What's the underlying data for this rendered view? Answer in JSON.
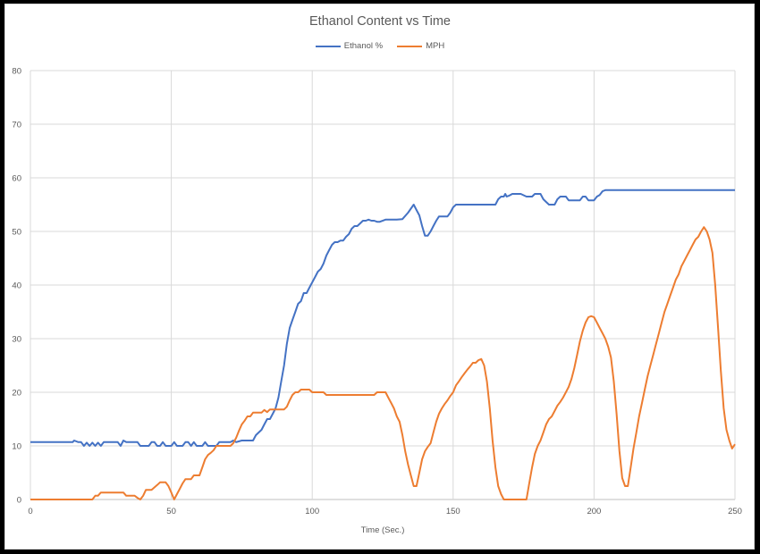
{
  "chart_data": {
    "type": "line",
    "title": "Ethanol Content vs Time",
    "xlabel": "Time (Sec.)",
    "ylabel": "",
    "xlim": [
      0,
      250
    ],
    "ylim": [
      0,
      80
    ],
    "xticks": [
      0,
      50,
      100,
      150,
      200,
      250
    ],
    "yticks": [
      0,
      10,
      20,
      30,
      40,
      50,
      60,
      70,
      80
    ],
    "grid": true,
    "legend_position": "top",
    "series": [
      {
        "name": "Ethanol %",
        "color": "#4472C4",
        "points": [
          [
            0,
            10.7
          ],
          [
            15,
            10.7
          ],
          [
            15.5,
            11
          ],
          [
            17,
            10.7
          ],
          [
            18,
            10.7
          ],
          [
            19,
            10
          ],
          [
            20,
            10.6
          ],
          [
            21,
            10
          ],
          [
            22,
            10.6
          ],
          [
            23,
            10
          ],
          [
            24,
            10.6
          ],
          [
            25,
            10
          ],
          [
            26,
            10.7
          ],
          [
            31,
            10.7
          ],
          [
            32,
            10
          ],
          [
            33,
            11
          ],
          [
            34,
            10.7
          ],
          [
            38,
            10.7
          ],
          [
            39,
            10
          ],
          [
            42,
            10
          ],
          [
            43,
            10.7
          ],
          [
            44,
            10.7
          ],
          [
            45,
            10
          ],
          [
            46,
            10
          ],
          [
            47,
            10.7
          ],
          [
            48,
            10
          ],
          [
            50,
            10
          ],
          [
            51,
            10.7
          ],
          [
            52,
            10
          ],
          [
            54,
            10
          ],
          [
            55,
            10.7
          ],
          [
            56,
            10.7
          ],
          [
            57,
            10
          ],
          [
            58,
            10.7
          ],
          [
            59,
            10
          ],
          [
            61,
            10
          ],
          [
            62,
            10.7
          ],
          [
            63,
            10
          ],
          [
            66,
            10
          ],
          [
            67,
            10.7
          ],
          [
            71,
            10.7
          ],
          [
            72,
            11
          ],
          [
            73,
            10.7
          ],
          [
            75,
            11
          ],
          [
            79,
            11
          ],
          [
            80,
            12
          ],
          [
            82,
            13
          ],
          [
            83,
            14
          ],
          [
            84,
            15
          ],
          [
            85,
            15
          ],
          [
            86,
            16
          ],
          [
            87,
            17
          ],
          [
            88,
            19
          ],
          [
            89,
            22
          ],
          [
            90,
            25
          ],
          [
            91,
            29
          ],
          [
            92,
            32
          ],
          [
            93,
            33.5
          ],
          [
            94,
            35
          ],
          [
            95,
            36.5
          ],
          [
            96,
            37
          ],
          [
            97,
            38.5
          ],
          [
            98,
            38.5
          ],
          [
            99,
            39.5
          ],
          [
            100,
            40.5
          ],
          [
            101,
            41.5
          ],
          [
            102,
            42.5
          ],
          [
            103,
            43
          ],
          [
            104,
            44
          ],
          [
            105,
            45.5
          ],
          [
            106,
            46.5
          ],
          [
            107,
            47.5
          ],
          [
            108,
            48
          ],
          [
            109,
            48
          ],
          [
            110,
            48.3
          ],
          [
            111,
            48.3
          ],
          [
            112,
            49
          ],
          [
            113,
            49.5
          ],
          [
            114,
            50.5
          ],
          [
            115,
            51
          ],
          [
            116,
            51
          ],
          [
            117,
            51.5
          ],
          [
            118,
            52
          ],
          [
            119,
            52
          ],
          [
            120,
            52.2
          ],
          [
            121,
            52
          ],
          [
            122,
            52
          ],
          [
            123,
            51.8
          ],
          [
            124,
            51.8
          ],
          [
            126,
            52.2
          ],
          [
            130,
            52.2
          ],
          [
            132,
            52.3
          ],
          [
            134,
            53.5
          ],
          [
            136,
            55
          ],
          [
            137,
            54
          ],
          [
            138,
            53
          ],
          [
            139,
            51
          ],
          [
            140,
            49.2
          ],
          [
            141,
            49.2
          ],
          [
            142,
            50
          ],
          [
            143,
            51
          ],
          [
            144,
            52
          ],
          [
            145,
            52.8
          ],
          [
            147,
            52.8
          ],
          [
            148,
            52.8
          ],
          [
            149,
            53.5
          ],
          [
            150,
            54.5
          ],
          [
            151,
            55
          ],
          [
            161,
            55
          ],
          [
            164,
            55
          ],
          [
            165,
            55
          ],
          [
            166,
            56
          ],
          [
            167,
            56.5
          ],
          [
            168,
            56.5
          ],
          [
            168.5,
            57
          ],
          [
            169,
            56.5
          ],
          [
            170,
            56.7
          ],
          [
            171,
            57
          ],
          [
            174,
            57
          ],
          [
            176,
            56.5
          ],
          [
            178,
            56.5
          ],
          [
            179,
            57
          ],
          [
            181,
            57
          ],
          [
            182,
            56
          ],
          [
            183,
            55.5
          ],
          [
            184,
            55
          ],
          [
            186,
            55
          ],
          [
            187,
            56
          ],
          [
            188,
            56.5
          ],
          [
            190,
            56.5
          ],
          [
            191,
            55.8
          ],
          [
            195,
            55.8
          ],
          [
            196,
            56.5
          ],
          [
            197,
            56.5
          ],
          [
            198,
            55.8
          ],
          [
            200,
            55.8
          ],
          [
            201,
            56.5
          ],
          [
            202,
            56.8
          ],
          [
            203,
            57.5
          ],
          [
            204,
            57.7
          ],
          [
            250,
            57.7
          ]
        ]
      },
      {
        "name": "MPH",
        "color": "#ED7D31",
        "points": [
          [
            0,
            0
          ],
          [
            22,
            0
          ],
          [
            23,
            0.7
          ],
          [
            24,
            0.7
          ],
          [
            25,
            1.3
          ],
          [
            33,
            1.3
          ],
          [
            34,
            0.7
          ],
          [
            37,
            0.7
          ],
          [
            38,
            0.3
          ],
          [
            39,
            0
          ],
          [
            40,
            0.7
          ],
          [
            41,
            1.8
          ],
          [
            43,
            1.8
          ],
          [
            45,
            2.7
          ],
          [
            46,
            3.2
          ],
          [
            48,
            3.2
          ],
          [
            49,
            2.5
          ],
          [
            50,
            1.3
          ],
          [
            51,
            0
          ],
          [
            52,
            1
          ],
          [
            53,
            2
          ],
          [
            54,
            3
          ],
          [
            55,
            3.8
          ],
          [
            57,
            3.8
          ],
          [
            58,
            4.5
          ],
          [
            60,
            4.5
          ],
          [
            61,
            6
          ],
          [
            62,
            7.5
          ],
          [
            63,
            8.3
          ],
          [
            64,
            8.7
          ],
          [
            65,
            9.2
          ],
          [
            66,
            10
          ],
          [
            71,
            10
          ],
          [
            72,
            10.5
          ],
          [
            73,
            11.5
          ],
          [
            74,
            12.8
          ],
          [
            75,
            14
          ],
          [
            76,
            14.7
          ],
          [
            77,
            15.5
          ],
          [
            78,
            15.5
          ],
          [
            79,
            16.2
          ],
          [
            82,
            16.2
          ],
          [
            83,
            16.7
          ],
          [
            84,
            16.3
          ],
          [
            85,
            16.8
          ],
          [
            90,
            16.8
          ],
          [
            91,
            17.3
          ],
          [
            92,
            18.5
          ],
          [
            93,
            19.5
          ],
          [
            94,
            20
          ],
          [
            95,
            20
          ],
          [
            96,
            20.5
          ],
          [
            99,
            20.5
          ],
          [
            100,
            20
          ],
          [
            104,
            20
          ],
          [
            105,
            19.5
          ],
          [
            122,
            19.5
          ],
          [
            123,
            20
          ],
          [
            126,
            20
          ],
          [
            127,
            19
          ],
          [
            128,
            18
          ],
          [
            129,
            17
          ],
          [
            130,
            15.5
          ],
          [
            131,
            14.5
          ],
          [
            132,
            12
          ],
          [
            133,
            9
          ],
          [
            134,
            6.5
          ],
          [
            135,
            4.5
          ],
          [
            136,
            2.5
          ],
          [
            137,
            2.5
          ],
          [
            138,
            5
          ],
          [
            139,
            7.5
          ],
          [
            140,
            9
          ],
          [
            141,
            9.8
          ],
          [
            142,
            10.5
          ],
          [
            143,
            12.5
          ],
          [
            144,
            14.5
          ],
          [
            145,
            16
          ],
          [
            146,
            17
          ],
          [
            147,
            17.8
          ],
          [
            148,
            18.5
          ],
          [
            149,
            19.3
          ],
          [
            150,
            20
          ],
          [
            151,
            21.3
          ],
          [
            152,
            22
          ],
          [
            153,
            22.8
          ],
          [
            154,
            23.5
          ],
          [
            155,
            24.2
          ],
          [
            156,
            24.8
          ],
          [
            157,
            25.5
          ],
          [
            158,
            25.5
          ],
          [
            159,
            26
          ],
          [
            160,
            26.2
          ],
          [
            161,
            25
          ],
          [
            162,
            22
          ],
          [
            163,
            17
          ],
          [
            164,
            11
          ],
          [
            165,
            6
          ],
          [
            166,
            2.5
          ],
          [
            167,
            1
          ],
          [
            168,
            0
          ],
          [
            176,
            0
          ],
          [
            177,
            3
          ],
          [
            178,
            6
          ],
          [
            179,
            8.5
          ],
          [
            180,
            10
          ],
          [
            181,
            11
          ],
          [
            182,
            12.5
          ],
          [
            183,
            14
          ],
          [
            184,
            15
          ],
          [
            185,
            15.5
          ],
          [
            186,
            16.5
          ],
          [
            187,
            17.5
          ],
          [
            188,
            18.2
          ],
          [
            189,
            19
          ],
          [
            190,
            20
          ],
          [
            191,
            21
          ],
          [
            192,
            22.5
          ],
          [
            193,
            24.5
          ],
          [
            194,
            27
          ],
          [
            195,
            29.5
          ],
          [
            196,
            31.5
          ],
          [
            197,
            33
          ],
          [
            198,
            34
          ],
          [
            199,
            34.2
          ],
          [
            200,
            34
          ],
          [
            201,
            33
          ],
          [
            202,
            32
          ],
          [
            203,
            31
          ],
          [
            204,
            30
          ],
          [
            205,
            28.5
          ],
          [
            206,
            26.5
          ],
          [
            207,
            22
          ],
          [
            208,
            16
          ],
          [
            209,
            9
          ],
          [
            210,
            4
          ],
          [
            211,
            2.5
          ],
          [
            212,
            2.5
          ],
          [
            213,
            6
          ],
          [
            214,
            9.5
          ],
          [
            215,
            12.5
          ],
          [
            216,
            15.5
          ],
          [
            217,
            18
          ],
          [
            218,
            20.5
          ],
          [
            219,
            23
          ],
          [
            220,
            25
          ],
          [
            221,
            27
          ],
          [
            222,
            29
          ],
          [
            223,
            31
          ],
          [
            224,
            33
          ],
          [
            225,
            35
          ],
          [
            226,
            36.5
          ],
          [
            227,
            38
          ],
          [
            228,
            39.5
          ],
          [
            229,
            41
          ],
          [
            230,
            42
          ],
          [
            231,
            43.5
          ],
          [
            232,
            44.5
          ],
          [
            233,
            45.5
          ],
          [
            234,
            46.5
          ],
          [
            235,
            47.5
          ],
          [
            236,
            48.5
          ],
          [
            237,
            49
          ],
          [
            238,
            50
          ],
          [
            239,
            50.8
          ],
          [
            240,
            50
          ],
          [
            241,
            48.5
          ],
          [
            242,
            46
          ],
          [
            243,
            40
          ],
          [
            244,
            32
          ],
          [
            245,
            24
          ],
          [
            246,
            17
          ],
          [
            247,
            13
          ],
          [
            248,
            11
          ],
          [
            249,
            9.5
          ],
          [
            250,
            10.3
          ]
        ]
      }
    ]
  }
}
